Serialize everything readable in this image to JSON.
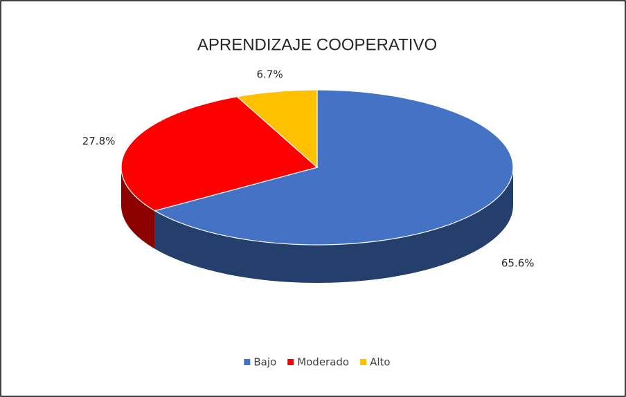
{
  "chart_data": {
    "type": "pie3d",
    "title": "APRENDIZAJE COOPERATIVO",
    "categories": [
      "Bajo",
      "Moderado",
      "Alto"
    ],
    "values": [
      65.6,
      27.8,
      6.7
    ],
    "value_labels": [
      "65.6%",
      "27.8%",
      "6.7%"
    ],
    "colors": [
      "#4472c4",
      "#ff0000",
      "#ffc000"
    ],
    "legend": "bottom"
  }
}
